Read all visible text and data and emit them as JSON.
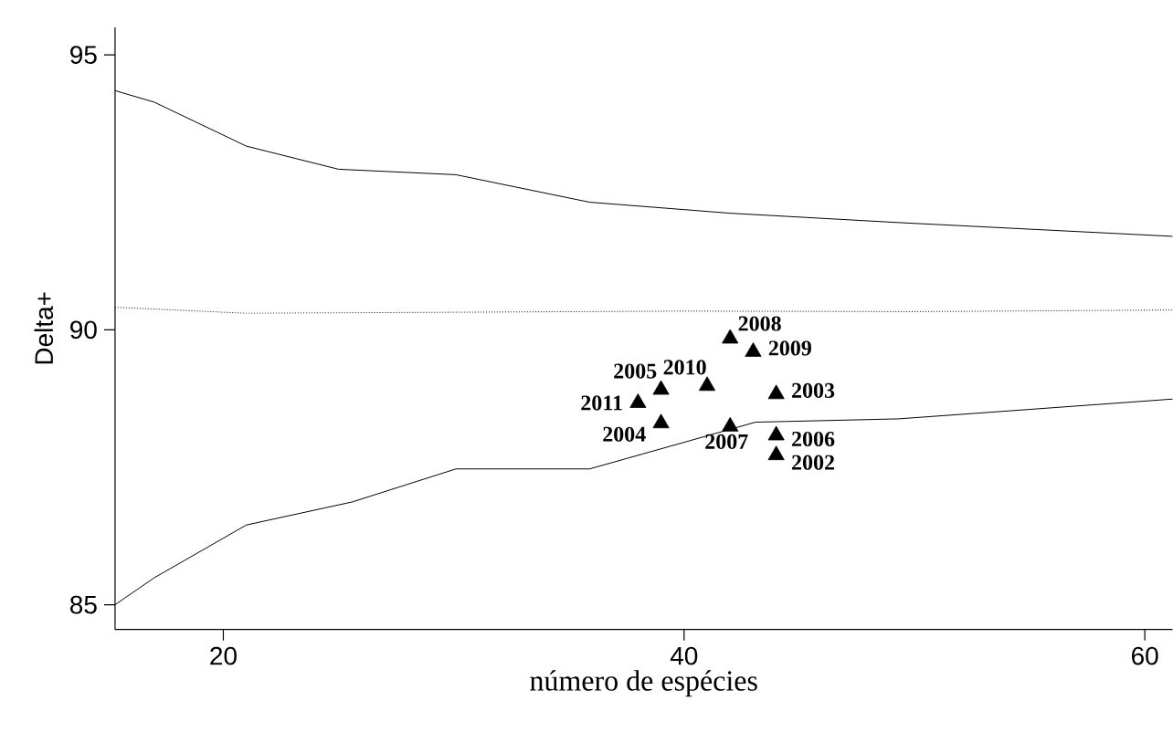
{
  "chart_data": {
    "type": "scatter",
    "xlabel": "número de espécies",
    "ylabel": "Delta+",
    "xlim": [
      15.3,
      61.2
    ],
    "ylim": [
      84.55,
      95.5
    ],
    "xticks": [
      20,
      40,
      60
    ],
    "yticks": [
      85,
      90,
      95
    ],
    "grid": false,
    "series": [
      {
        "type": "line",
        "color": "#000000",
        "line_style": "solid",
        "marker": "none",
        "x": [
          15.3,
          17.0,
          21.0,
          25.0,
          30.1,
          35.9,
          42.0,
          49.3,
          61.2
        ],
        "values": [
          94.35,
          94.14,
          93.34,
          92.92,
          92.82,
          92.32,
          92.12,
          91.95,
          91.7
        ]
      },
      {
        "type": "line",
        "color": "#000000",
        "line_style": "dotted",
        "marker": "none",
        "x": [
          15.3,
          21.0,
          40.0,
          50.0,
          61.2
        ],
        "values": [
          90.41,
          90.3,
          90.34,
          90.33,
          90.36
        ]
      },
      {
        "type": "line",
        "color": "#000000",
        "line_style": "solid",
        "marker": "none",
        "x": [
          15.3,
          17.0,
          21.0,
          25.6,
          30.1,
          35.9,
          43.1,
          49.3,
          61.2
        ],
        "values": [
          85.0,
          85.49,
          86.45,
          86.87,
          87.47,
          87.47,
          88.32,
          88.38,
          88.74
        ]
      },
      {
        "color": "#000000",
        "marker": "triangle",
        "x": [
          42.0,
          43.0,
          41.0,
          39.0,
          38.0,
          44.0,
          39.0,
          42.0,
          44.0,
          44.0
        ],
        "values": [
          89.84,
          89.6,
          88.98,
          88.91,
          88.67,
          88.83,
          88.3,
          88.24,
          88.08,
          87.72
        ]
      }
    ],
    "annotations": [
      {
        "text": "2008",
        "x": 42.0,
        "y": 89.84
      },
      {
        "text": "2009",
        "x": 43.0,
        "y": 89.6
      },
      {
        "text": "2010",
        "x": 41.0,
        "y": 88.98
      },
      {
        "text": "2005",
        "x": 39.0,
        "y": 88.91
      },
      {
        "text": "2011",
        "x": 38.0,
        "y": 88.67
      },
      {
        "text": "2003",
        "x": 44.0,
        "y": 88.83
      },
      {
        "text": "2004",
        "x": 39.0,
        "y": 88.3
      },
      {
        "text": "2007",
        "x": 42.0,
        "y": 88.24
      },
      {
        "text": "2006",
        "x": 44.0,
        "y": 88.08
      },
      {
        "text": "2002",
        "x": 44.0,
        "y": 87.72
      }
    ]
  }
}
